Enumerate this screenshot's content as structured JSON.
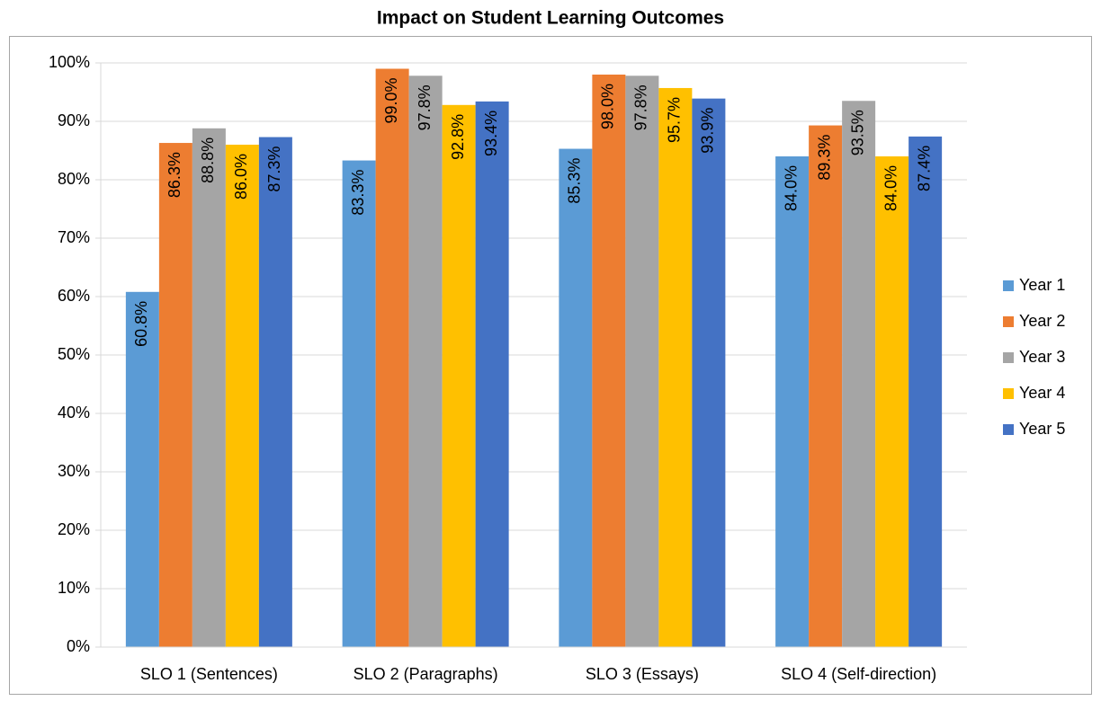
{
  "chart_data": {
    "type": "bar",
    "title": "Impact on Student Learning Outcomes",
    "categories": [
      "SLO 1 (Sentences)",
      "SLO 2 (Paragraphs)",
      "SLO 3 (Essays)",
      "SLO 4 (Self-direction)"
    ],
    "series": [
      {
        "name": "Year 1",
        "color": "#5b9bd5",
        "values": [
          60.8,
          83.3,
          85.3,
          84.0
        ],
        "value_labels": [
          "60.8%",
          "83.3%",
          "85.3%",
          "84.0%"
        ]
      },
      {
        "name": "Year 2",
        "color": "#ed7d31",
        "values": [
          86.3,
          99.0,
          98.0,
          89.3
        ],
        "value_labels": [
          "86.3%",
          "99.0%",
          "98.0%",
          "89.3%"
        ]
      },
      {
        "name": "Year 3",
        "color": "#a5a5a5",
        "values": [
          88.8,
          97.8,
          97.8,
          93.5
        ],
        "value_labels": [
          "88.8%",
          "97.8%",
          "97.8%",
          "93.5%"
        ]
      },
      {
        "name": "Year 4",
        "color": "#ffc000",
        "values": [
          86.0,
          92.8,
          95.7,
          84.0
        ],
        "value_labels": [
          "86.0%",
          "92.8%",
          "95.7%",
          "84.0%"
        ]
      },
      {
        "name": "Year 5",
        "color": "#4472c4",
        "values": [
          87.3,
          93.4,
          93.9,
          87.4
        ],
        "value_labels": [
          "87.3%",
          "93.4%",
          "93.9%",
          "87.4%"
        ]
      }
    ],
    "ylim": [
      0,
      100
    ],
    "yticks": [
      {
        "value": 0,
        "label": "0%"
      },
      {
        "value": 10,
        "label": "10%"
      },
      {
        "value": 20,
        "label": "20%"
      },
      {
        "value": 30,
        "label": "30%"
      },
      {
        "value": 40,
        "label": "40%"
      },
      {
        "value": 50,
        "label": "50%"
      },
      {
        "value": 60,
        "label": "60%"
      },
      {
        "value": 70,
        "label": "70%"
      },
      {
        "value": 80,
        "label": "80%"
      },
      {
        "value": 90,
        "label": "90%"
      },
      {
        "value": 100,
        "label": "100%"
      }
    ],
    "grid": true,
    "legend": "right"
  }
}
